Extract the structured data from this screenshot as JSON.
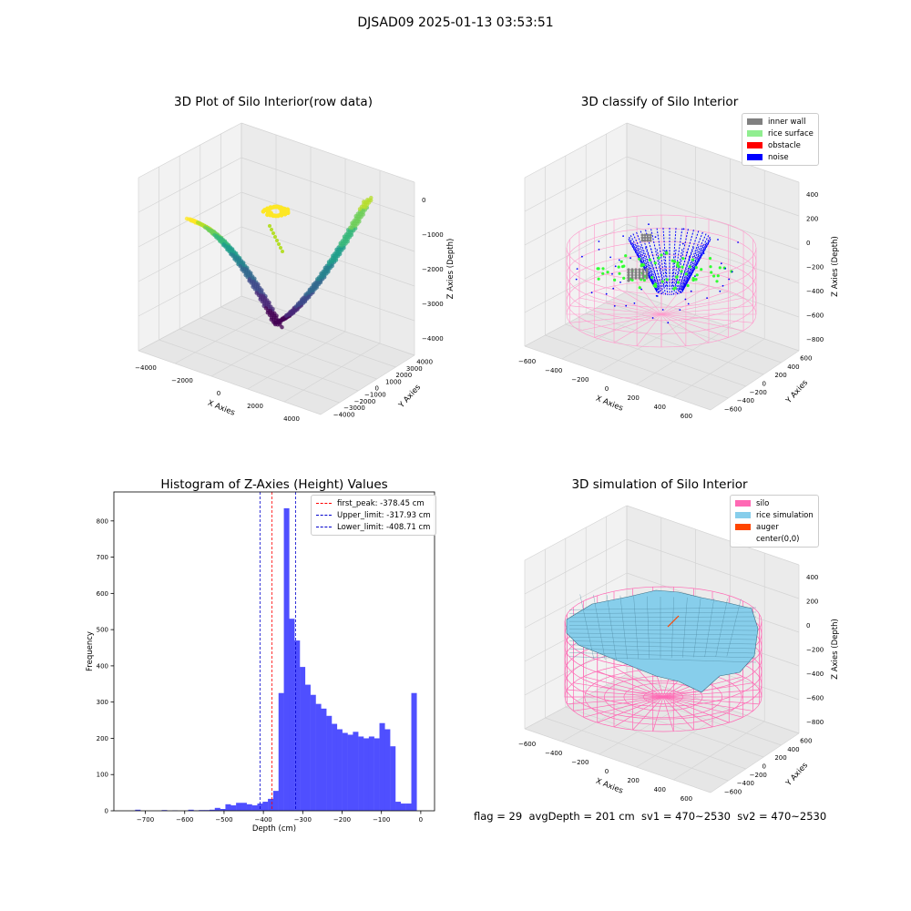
{
  "figure": {
    "suptitle": "DJSAD09 2025-01-13 03:53:51",
    "status_line": "flag = 29  avgDepth = 201 cm  sv1 = 470~2530  sv2 = 470~2530"
  },
  "chart_data": [
    {
      "type": "scatter",
      "title": "3D Plot of Silo Interior(row data)",
      "xlabel": "X Axies",
      "ylabel": "Y Axies",
      "zlabel": "Z Axies (Depth)",
      "x_ticks": [
        "−4000",
        "−2000",
        "0",
        "2000",
        "4000"
      ],
      "y_ticks": [
        "−4000",
        "−3000",
        "−2000",
        "−1000",
        "0",
        "1000",
        "2000",
        "3000",
        "4000"
      ],
      "z_ticks": [
        "−4000",
        "−3000",
        "−2000",
        "−1000",
        "0"
      ],
      "colormap": "viridis"
    },
    {
      "type": "scatter",
      "title": "3D classify of Silo Interior",
      "xlabel": "X Axies",
      "ylabel": "Y Axies",
      "zlabel": "Z Axies (Depth)",
      "x_ticks": [
        "−600",
        "−400",
        "−200",
        "0",
        "200",
        "400",
        "600"
      ],
      "y_ticks": [
        "−600",
        "−400",
        "−200",
        "0",
        "200",
        "400",
        "600"
      ],
      "z_ticks": [
        "−800",
        "−600",
        "−400",
        "−200",
        "0",
        "200",
        "400"
      ],
      "legend": [
        {
          "label": "inner wall",
          "color": "#808080"
        },
        {
          "label": "rice surface",
          "color": "#90ee90"
        },
        {
          "label": "obstacle",
          "color": "#ff0000"
        },
        {
          "label": "noise",
          "color": "#0000ff"
        }
      ],
      "legend_position": "top-right",
      "silo_color": "#ff99cc"
    },
    {
      "type": "bar",
      "title": "Histogram of Z-Axies (Height) Values",
      "xlabel": "Depth (cm)",
      "ylabel": "Frequency",
      "xlim": [
        -780,
        35
      ],
      "ylim": [
        0,
        880
      ],
      "x_ticks": [
        -700,
        -600,
        -500,
        -400,
        -300,
        -200,
        -100,
        0
      ],
      "x_tick_labels": [
        "−700",
        "−600",
        "−500",
        "−400",
        "−300",
        "−200",
        "−100",
        "0"
      ],
      "y_ticks": [
        0,
        100,
        200,
        300,
        400,
        500,
        600,
        700,
        800
      ],
      "bin_start": -780,
      "bin_width": 13.5,
      "values": [
        0,
        0,
        0,
        0,
        3,
        0,
        0,
        0,
        0,
        2,
        0,
        1,
        0,
        0,
        3,
        1,
        2,
        2,
        3,
        8,
        5,
        18,
        15,
        22,
        22,
        18,
        15,
        20,
        25,
        33,
        55,
        325,
        835,
        530,
        470,
        397,
        348,
        320,
        295,
        282,
        262,
        240,
        225,
        215,
        210,
        218,
        205,
        200,
        205,
        200,
        242,
        225,
        178,
        25,
        20,
        20,
        325
      ],
      "bar_color": "#4f4fff",
      "vlines": [
        {
          "x": -378.45,
          "color": "#ff0000"
        },
        {
          "x": -317.93,
          "color": "#0000cc"
        },
        {
          "x": -408.71,
          "color": "#0000cc"
        }
      ],
      "legend": [
        {
          "label": "first_peak: -378.45 cm",
          "color": "#ff0000"
        },
        {
          "label": "Upper_limit: -317.93 cm",
          "color": "#0000cc"
        },
        {
          "label": "Lower_limit: -408.71 cm",
          "color": "#0000cc"
        }
      ],
      "legend_position": "top-right"
    },
    {
      "type": "area",
      "title": "3D simulation of Silo Interior",
      "xlabel": "X Axies",
      "ylabel": "Y Axies",
      "zlabel": "Z Axies (Depth)",
      "x_ticks": [
        "−600",
        "−400",
        "−200",
        "0",
        "200",
        "400",
        "600"
      ],
      "y_ticks": [
        "−600",
        "−400",
        "−200",
        "0",
        "200",
        "400",
        "600"
      ],
      "z_ticks": [
        "−800",
        "−600",
        "−400",
        "−200",
        "0",
        "200",
        "400"
      ],
      "legend": [
        {
          "label": "silo",
          "color": "#ff69b4"
        },
        {
          "label": "rice simulation",
          "color": "#87ceeb"
        },
        {
          "label": "auger",
          "color": "#ff4500"
        },
        {
          "label": "center(0,0)",
          "color": "#ffffff"
        }
      ],
      "legend_position": "top-right"
    }
  ]
}
